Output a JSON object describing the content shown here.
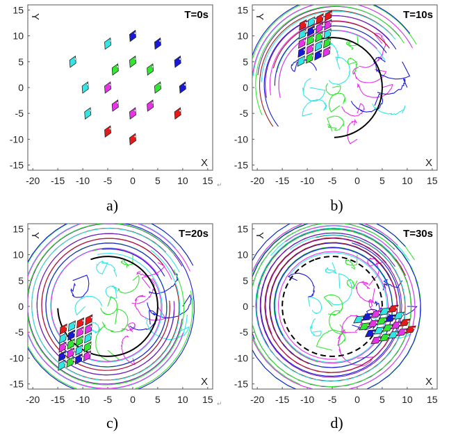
{
  "chart_data": [
    {
      "id": "a",
      "type": "scatter",
      "title": "T=0s",
      "caption": "a)",
      "xlabel": "X",
      "ylabel": "Y",
      "xlim": [
        -21,
        16
      ],
      "ylim": [
        -16,
        16
      ],
      "xticks": [
        -20,
        -15,
        -10,
        -5,
        0,
        5,
        10,
        15
      ],
      "yticks": [
        15,
        10,
        5,
        0,
        -5,
        -10,
        -15
      ],
      "grid": false,
      "rings": 0,
      "block": null
    },
    {
      "id": "b",
      "type": "line",
      "title": "T=10s",
      "caption": "b)",
      "xlabel": "X",
      "ylabel": "Y",
      "xlim": [
        -21,
        16
      ],
      "ylim": [
        -16,
        16
      ],
      "xticks": [
        -20,
        -15,
        -10,
        -5,
        0,
        5,
        10,
        15
      ],
      "yticks": [
        15,
        10,
        5,
        0,
        -5,
        -10,
        -15
      ],
      "grid": false,
      "rings": 1,
      "block": {
        "center": [
          -8.5,
          9.5
        ],
        "angle": -20
      }
    },
    {
      "id": "c",
      "type": "line",
      "title": "T=20s",
      "caption": "c)",
      "xlabel": "X",
      "ylabel": "Y",
      "xlim": [
        -21,
        16
      ],
      "ylim": [
        -16,
        16
      ],
      "xticks": [
        -20,
        -15,
        -10,
        -5,
        0,
        5,
        10,
        15
      ],
      "yticks": [
        15,
        10,
        5,
        0,
        -5,
        -10,
        -15
      ],
      "grid": false,
      "rings": 2,
      "block": {
        "center": [
          -11.5,
          -7
        ],
        "angle": -20
      }
    },
    {
      "id": "d",
      "type": "line",
      "title": "T=30s",
      "caption": "d)",
      "xlabel": "X",
      "ylabel": "Y",
      "xlim": [
        -21,
        16
      ],
      "ylim": [
        -16,
        16
      ],
      "xticks": [
        -20,
        -15,
        -10,
        -5,
        0,
        5,
        10,
        15
      ],
      "yticks": [
        15,
        10,
        5,
        0,
        -5,
        -10,
        -15
      ],
      "grid": false,
      "rings": 3,
      "block": {
        "center": [
          5.5,
          -3.5
        ],
        "angle": 50
      }
    }
  ],
  "formation": {
    "colors": {
      "cyan": "#33e6e6",
      "green": "#33e633",
      "magenta": "#e633e6",
      "blue": "#1a1ad6",
      "red": "#e61a1a",
      "dark_red": "#a01a1a"
    },
    "agents": [
      {
        "x": -5,
        "y": 8.5,
        "color": "cyan"
      },
      {
        "x": 0,
        "y": 10,
        "color": "blue"
      },
      {
        "x": 5,
        "y": 8.5,
        "color": "blue"
      },
      {
        "x": -12,
        "y": 5,
        "color": "cyan"
      },
      {
        "x": -3.5,
        "y": 3.5,
        "color": "green"
      },
      {
        "x": 0,
        "y": 5,
        "color": "green"
      },
      {
        "x": 3.5,
        "y": 3.5,
        "color": "green"
      },
      {
        "x": 9,
        "y": 5,
        "color": "blue"
      },
      {
        "x": -9.5,
        "y": 0,
        "color": "cyan"
      },
      {
        "x": -5,
        "y": 0,
        "color": "magenta"
      },
      {
        "x": 5,
        "y": 0,
        "color": "green"
      },
      {
        "x": 10,
        "y": 0,
        "color": "blue"
      },
      {
        "x": -9,
        "y": -5,
        "color": "cyan"
      },
      {
        "x": -3.5,
        "y": -3.5,
        "color": "magenta"
      },
      {
        "x": 0,
        "y": -5,
        "color": "magenta"
      },
      {
        "x": 3.5,
        "y": -3.5,
        "color": "magenta"
      },
      {
        "x": 9,
        "y": -5,
        "color": "red"
      },
      {
        "x": -5,
        "y": -8.5,
        "color": "red"
      },
      {
        "x": 0,
        "y": -10,
        "color": "red"
      }
    ],
    "block_rows": [
      [
        "red",
        "cyan",
        "red",
        "red"
      ],
      [
        "cyan",
        "blue",
        "magenta",
        "magenta"
      ],
      [
        "magenta",
        "green",
        "green",
        "cyan"
      ],
      [
        "blue",
        "magenta",
        "cyan",
        "green"
      ],
      [
        "cyan",
        "green",
        "blue",
        "magenta"
      ]
    ]
  },
  "trajectory_colors": [
    "#33e6e6",
    "#33e633",
    "#e633e6",
    "#1a1ad6",
    "#a01a1a",
    "#7a1ab3"
  ],
  "reference_circle": {
    "center": [
      -5,
      0
    ],
    "radius": 10,
    "style": "dashed",
    "color": "#000000"
  },
  "return_mark": "↵"
}
